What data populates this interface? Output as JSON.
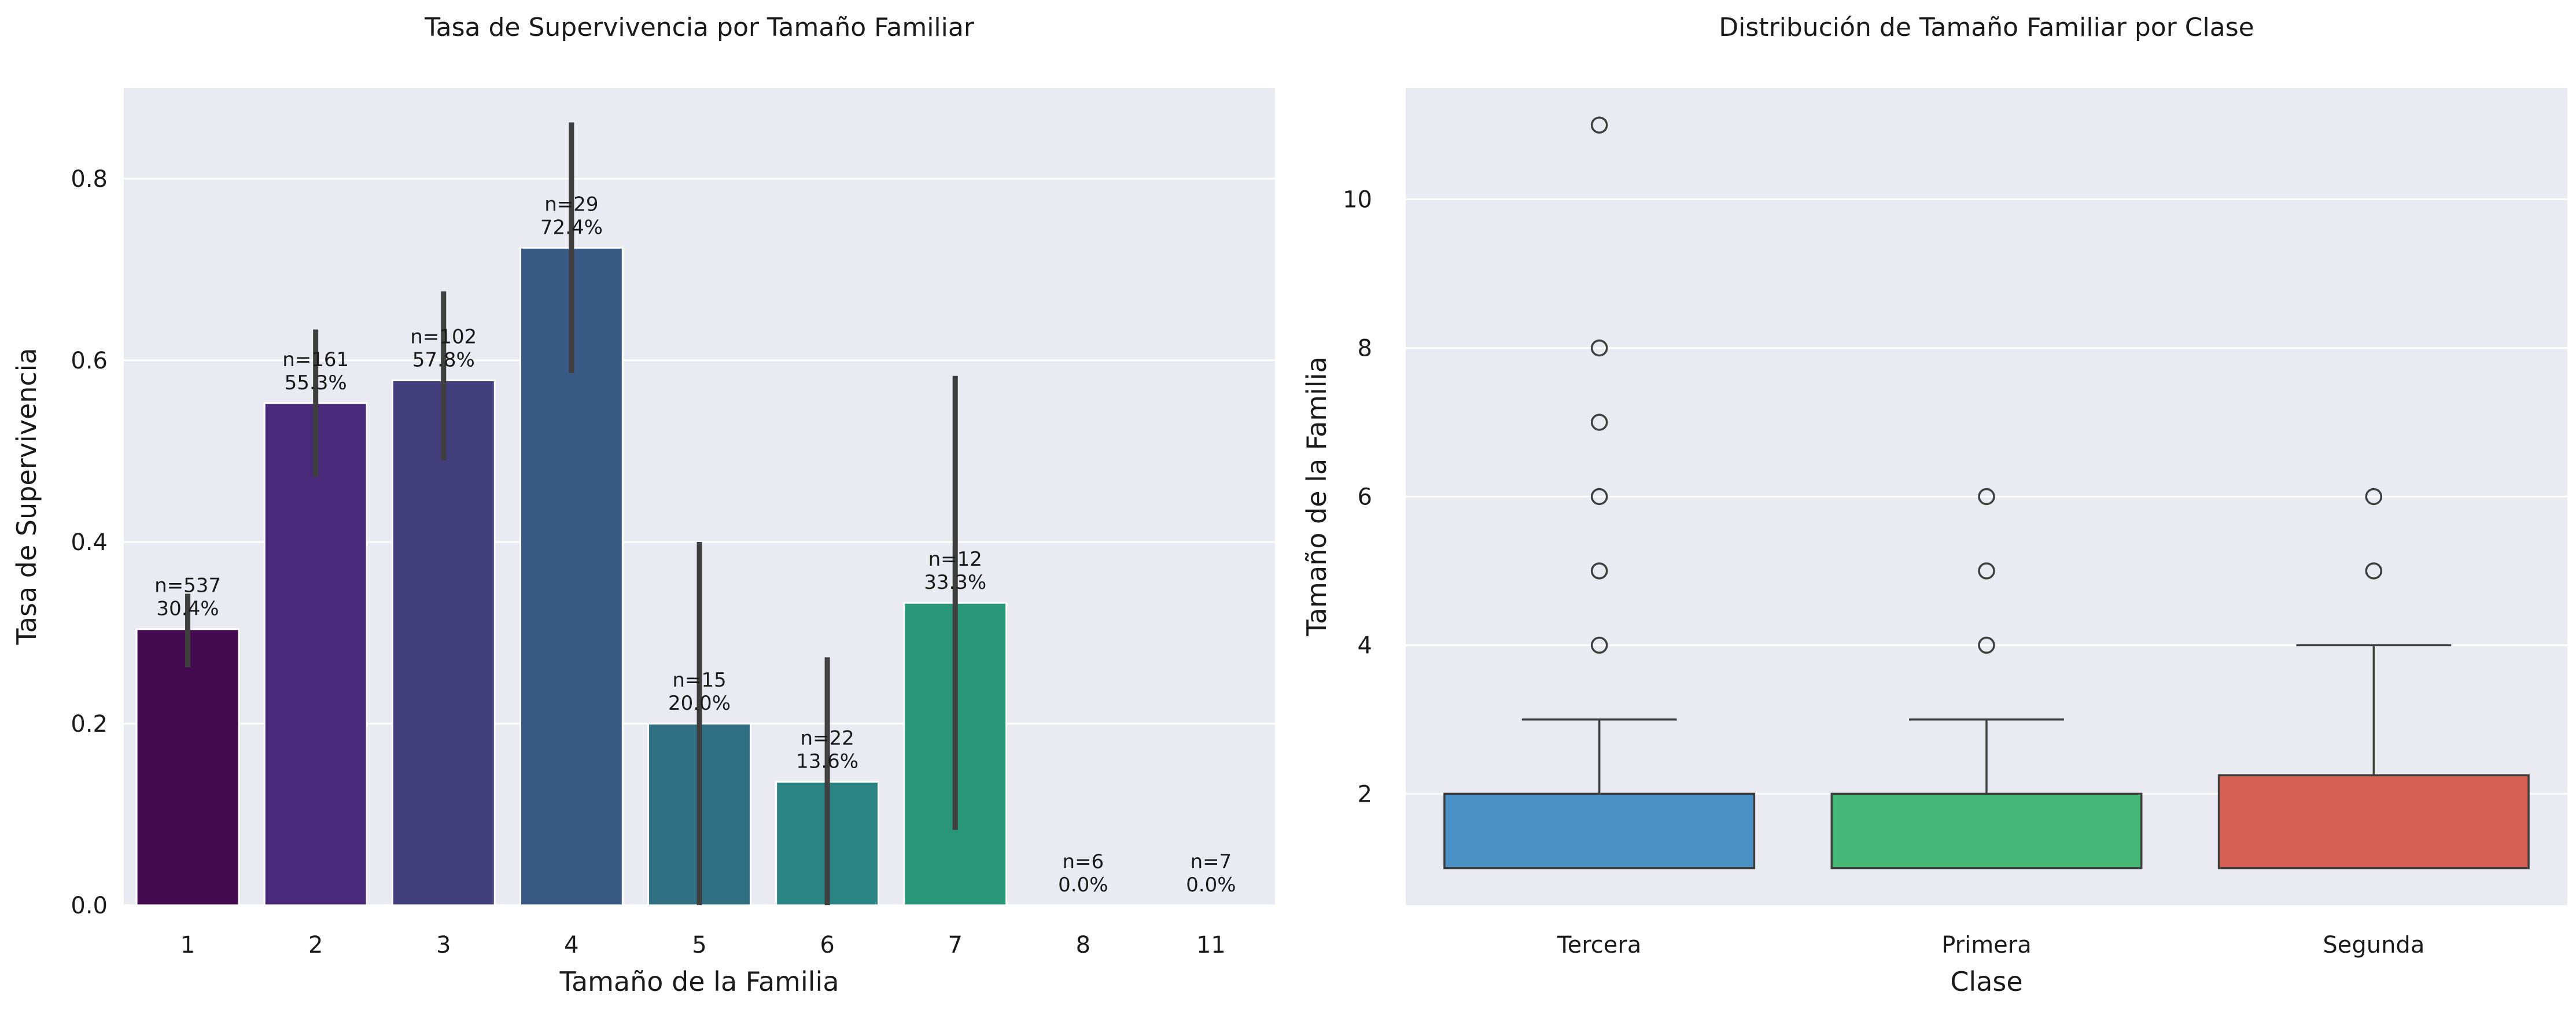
{
  "chart_data": [
    {
      "type": "bar",
      "title": "Tasa de Supervivencia por Tamaño Familiar",
      "xlabel": "Tamaño de la Familia",
      "ylabel": "Tasa de Supervivencia",
      "ylim": [
        0,
        0.9
      ],
      "yticks": [
        "0.0",
        "0.2",
        "0.4",
        "0.6",
        "0.8"
      ],
      "grid": true,
      "categories": [
        "1",
        "2",
        "3",
        "4",
        "5",
        "6",
        "7",
        "8",
        "11"
      ],
      "values": [
        0.304,
        0.553,
        0.578,
        0.724,
        0.2,
        0.136,
        0.333,
        0.0,
        0.0
      ],
      "error_low": [
        0.262,
        0.472,
        0.49,
        0.586,
        0.0,
        0.0,
        0.083,
        0.0,
        0.0
      ],
      "error_high": [
        0.343,
        0.634,
        0.676,
        0.862,
        0.4,
        0.273,
        0.583,
        0.0,
        0.0
      ],
      "colors": [
        "#440a4f",
        "#482878",
        "#433f7d",
        "#3a5a86",
        "#2f6f81",
        "#2a8483",
        "#2a9678",
        "#4ab06a",
        "#86cc4a"
      ],
      "annotations": [
        [
          "n=537",
          "30.4%"
        ],
        [
          "n=161",
          "55.3%"
        ],
        [
          "n=102",
          "57.8%"
        ],
        [
          "n=29",
          "72.4%"
        ],
        [
          "n=15",
          "20.0%"
        ],
        [
          "n=22",
          "13.6%"
        ],
        [
          "n=12",
          "33.3%"
        ],
        [
          "n=6",
          "0.0%"
        ],
        [
          "n=7",
          "0.0%"
        ]
      ]
    },
    {
      "type": "box",
      "title": "Distribución de Tamaño Familiar por Clase",
      "xlabel": "Clase",
      "ylabel": "Tamaño de la Familia",
      "ylim": [
        0.5,
        11.5
      ],
      "yticks": [
        "2",
        "4",
        "6",
        "8",
        "10"
      ],
      "grid": true,
      "categories": [
        "Tercera",
        "Primera",
        "Segunda"
      ],
      "boxes": [
        {
          "q1": 1,
          "median": 1,
          "q3": 2,
          "whisker_low": 1,
          "whisker_high": 3,
          "outliers": [
            4,
            5,
            6,
            7,
            8,
            11
          ],
          "color": "#4a92c6"
        },
        {
          "q1": 1,
          "median": 1,
          "q3": 2,
          "whisker_low": 1,
          "whisker_high": 3,
          "outliers": [
            4,
            5,
            6
          ],
          "color": "#44b874"
        },
        {
          "q1": 1,
          "median": 1,
          "q3": 2.25,
          "whisker_low": 1,
          "whisker_high": 4,
          "outliers": [
            5,
            6
          ],
          "color": "#d45f52"
        }
      ]
    }
  ]
}
